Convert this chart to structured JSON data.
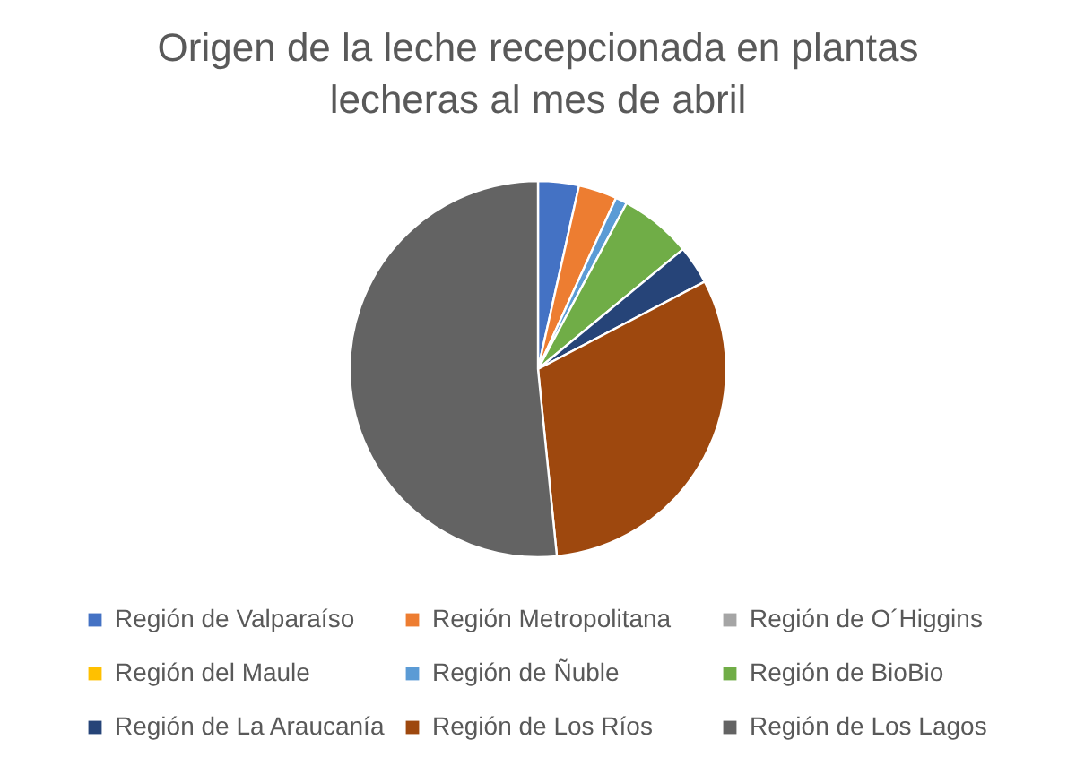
{
  "chart_data": {
    "type": "pie",
    "title": "Origen de la leche recepcionada en plantas lecheras al mes de abril",
    "categories": [
      "Región de Valparaíso",
      "Región Metropolitana",
      "Región de O´Higgins",
      "Región del Maule",
      "Región de Ñuble",
      "Región de BioBio",
      "Región de La Araucanía",
      "Región de Los Ríos",
      "Región de Los Lagos"
    ],
    "values": [
      3.5,
      3.3,
      null,
      null,
      1.0,
      6.2,
      3.3,
      31.1,
      51.6
    ],
    "colors": [
      "#4472c4",
      "#ed7d31",
      "#a5a5a5",
      "#ffc000",
      "#5b9bd5",
      "#70ad47",
      "#264478",
      "#9e480e",
      "#636363"
    ],
    "legend": "bottom"
  }
}
